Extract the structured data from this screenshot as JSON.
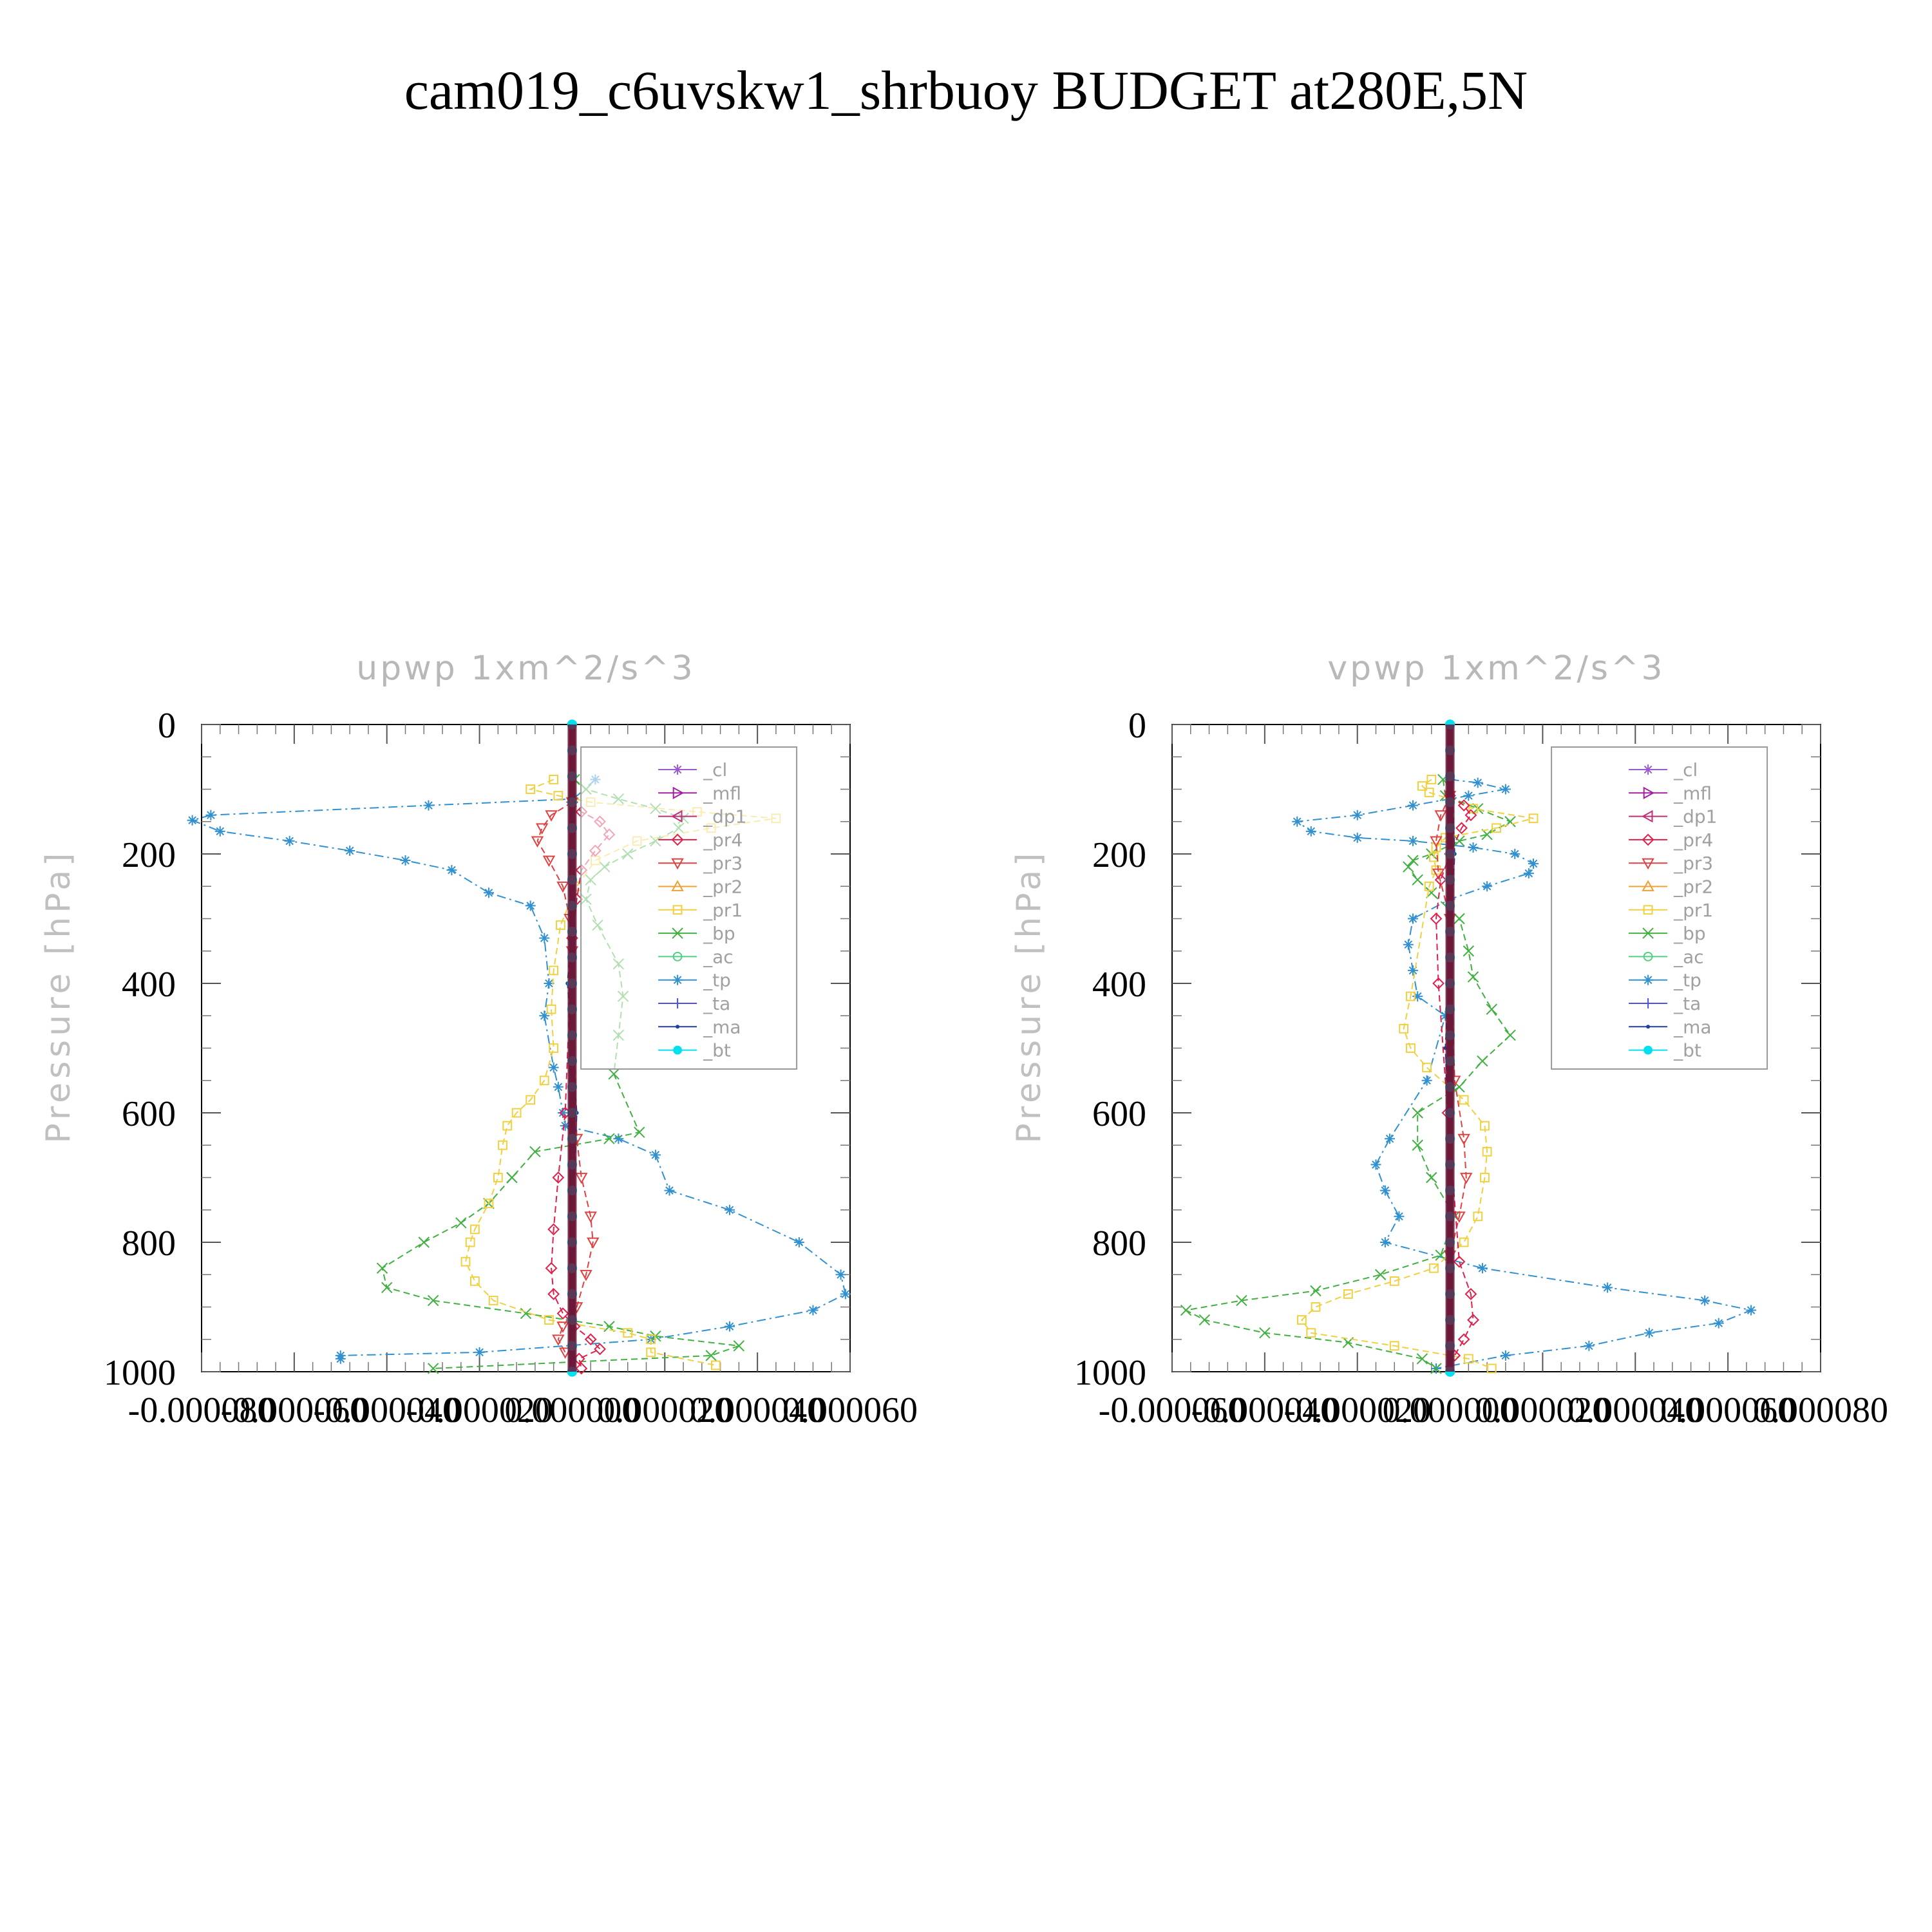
{
  "title": "cam019_c6uvskw1_shrbuoy  BUDGET at280E,5N",
  "legend_items": [
    {
      "label": "_cl",
      "color": "#9b59d0",
      "marker": "star"
    },
    {
      "label": "_mfl",
      "color": "#a020a0",
      "marker": "tri-right"
    },
    {
      "label": "_dp1",
      "color": "#c0307a",
      "marker": "tri-left"
    },
    {
      "label": "_pr4",
      "color": "#e0204a",
      "marker": "diamond"
    },
    {
      "label": "_pr3",
      "color": "#e04040",
      "marker": "tri-down"
    },
    {
      "label": "_pr2",
      "color": "#f0a030",
      "marker": "tri-up"
    },
    {
      "label": "_pr1",
      "color": "#f0d040",
      "marker": "square"
    },
    {
      "label": "_bp",
      "color": "#40b040",
      "marker": "x"
    },
    {
      "label": "_ac",
      "color": "#50d080",
      "marker": "circle"
    },
    {
      "label": "_tp",
      "color": "#3090d0",
      "marker": "asterisk"
    },
    {
      "label": "_ta",
      "color": "#5050e0",
      "marker": "plus"
    },
    {
      "label": "_ma",
      "color": "#2040a0",
      "marker": "dot"
    },
    {
      "label": "_bt",
      "color": "#00e0f0",
      "marker": "filled-circle"
    }
  ],
  "chart_data": [
    {
      "type": "line",
      "title": "upwp    1xm^2/s^3",
      "ylabel": "Pressure  [hPa]",
      "xlabel": "",
      "ylim": [
        1000,
        0
      ],
      "xlim": [
        -8e-05,
        6e-05
      ],
      "x_ticks": [
        -8e-05,
        -6e-05,
        -4e-05,
        -2e-05,
        0.0,
        2e-05,
        4e-05,
        6e-05
      ],
      "x_tick_labels": [
        "-0.000080",
        "-0.000060",
        "-0.000040",
        "-0.000020",
        "0.000000",
        "0.000020",
        "0.000040",
        "0.000060"
      ],
      "y_ticks": [
        0,
        200,
        400,
        600,
        800,
        1000
      ],
      "y_tick_labels": [
        "0",
        "200",
        "400",
        "600",
        "800",
        "1000"
      ],
      "legend_position": "top-right",
      "series": [
        {
          "name": "_tp",
          "x": [
            5e-06,
            3e-07,
            -3.1e-05,
            -7.8e-05,
            -8.2e-05,
            -7.6e-05,
            -6.1e-05,
            -4.8e-05,
            -3.6e-05,
            -2.6e-05,
            -1.8e-05,
            -9e-06,
            -6e-06,
            -5e-06,
            -6e-06,
            -4e-06,
            -3e-06,
            -2e-06,
            -1.5e-06,
            1e-05,
            1.8e-05,
            2.1e-05,
            3.4e-05,
            4.9e-05,
            5.8e-05,
            5.9e-05,
            5.2e-05,
            3.4e-05,
            1.7e-05,
            -2e-05,
            -5e-05,
            -5e-05
          ],
          "y": [
            85,
            115,
            125,
            140,
            148,
            165,
            180,
            195,
            210,
            225,
            260,
            280,
            330,
            400,
            450,
            530,
            560,
            600,
            620,
            640,
            665,
            720,
            750,
            800,
            850,
            880,
            905,
            930,
            950,
            970,
            975,
            980
          ]
        },
        {
          "name": "_bp",
          "x": [
            5e-07,
            3e-06,
            1e-05,
            1.8e-05,
            2.4e-05,
            2.3e-05,
            1.8e-05,
            1.2e-05,
            7e-06,
            4e-06,
            3e-06,
            5.5e-06,
            1e-05,
            1.1e-05,
            1e-05,
            9e-06,
            1.45e-05,
            8e-06,
            -8e-06,
            -1.3e-05,
            -1.8e-05,
            -2.4e-05,
            -3.2e-05,
            -4.1e-05,
            -4e-05,
            -3e-05,
            -1e-05,
            8e-06,
            1.8e-05,
            3.6e-05,
            3e-05,
            -3e-05
          ],
          "y": [
            85,
            100,
            115,
            130,
            145,
            160,
            180,
            200,
            220,
            240,
            270,
            310,
            370,
            420,
            480,
            540,
            630,
            640,
            660,
            700,
            740,
            770,
            800,
            840,
            870,
            890,
            910,
            930,
            945,
            960,
            975,
            995
          ]
        },
        {
          "name": "_pr1",
          "x": [
            -4e-06,
            -9e-06,
            -3e-06,
            4e-06,
            2.7e-05,
            4.4e-05,
            3e-05,
            1.4e-05,
            5e-06,
            1e-06,
            -2.5e-06,
            -4e-06,
            -4.5e-06,
            -4e-06,
            -6e-06,
            -9e-06,
            -1.2e-05,
            -1.4e-05,
            -1.5e-05,
            -1.6e-05,
            -1.8e-05,
            -2.1e-05,
            -2.2e-05,
            -2.3e-05,
            -2.1e-05,
            -1.7e-05,
            -5e-06,
            1.2e-05,
            1.7e-05,
            1.7e-05,
            3.1e-05
          ],
          "y": [
            85,
            100,
            110,
            120,
            135,
            145,
            160,
            180,
            210,
            250,
            310,
            380,
            440,
            500,
            550,
            580,
            600,
            620,
            650,
            700,
            740,
            780,
            800,
            830,
            860,
            890,
            920,
            940,
            950,
            970,
            990
          ]
        },
        {
          "name": "_pr4",
          "x": [
            0.0,
            2e-06,
            6e-06,
            8e-06,
            5e-06,
            2e-06,
            1e-06,
            0.0,
            -1.5e-06,
            -3e-06,
            -4e-06,
            -4.5e-06,
            -4e-06,
            -2e-06,
            5e-07,
            4e-06,
            6e-06,
            1.5e-06,
            2e-06
          ],
          "y": [
            120,
            135,
            150,
            170,
            195,
            225,
            270,
            330,
            600,
            700,
            780,
            840,
            880,
            910,
            930,
            950,
            965,
            980,
            995
          ]
        },
        {
          "name": "_pr3",
          "x": [
            0.0,
            -4.5e-06,
            -6.5e-06,
            -7.5e-06,
            -5e-06,
            -2e-06,
            -5e-07,
            0.0,
            1e-06,
            2e-06,
            4e-06,
            4.5e-06,
            3e-06,
            1e-06,
            -2e-06,
            -3e-06,
            -1.5e-06
          ],
          "y": [
            120,
            140,
            160,
            180,
            210,
            250,
            300,
            350,
            640,
            700,
            760,
            800,
            850,
            900,
            930,
            950,
            970
          ]
        },
        {
          "name": "_ma",
          "x": [
            0.0,
            0.0,
            -1e-06,
            1e-06,
            0.0,
            0.0,
            0.0
          ],
          "y": [
            0,
            300,
            400,
            600,
            800,
            900,
            1000
          ]
        },
        {
          "name": "_bt",
          "x": [
            0.0,
            0.0,
            0.0,
            0.0,
            0.0,
            0.0,
            0.0,
            0.0,
            0.0,
            0.0,
            0.0,
            0.0,
            0.0,
            0.0,
            0.0,
            0.0,
            0.0,
            0.0,
            0.0,
            0.0,
            0.0,
            0.0,
            0.0,
            0.0,
            0.0,
            0.0
          ],
          "y": [
            0,
            40,
            80,
            120,
            160,
            200,
            240,
            280,
            320,
            360,
            400,
            440,
            480,
            520,
            560,
            600,
            640,
            680,
            720,
            760,
            800,
            840,
            880,
            920,
            960,
            1000
          ]
        }
      ]
    },
    {
      "type": "line",
      "title": "vpwp    1xm^2/s^3",
      "ylabel": "Pressure  [hPa]",
      "xlabel": "",
      "ylim": [
        1000,
        0
      ],
      "xlim": [
        -6e-05,
        8e-05
      ],
      "x_ticks": [
        -6e-05,
        -4e-05,
        -2e-05,
        0.0,
        2e-05,
        4e-05,
        6e-05,
        8e-05
      ],
      "x_tick_labels": [
        "-0.000060",
        "-0.000040",
        "-0.000020",
        "0.000000",
        "0.000020",
        "0.000040",
        "0.000060",
        "0.000080"
      ],
      "y_ticks": [
        0,
        200,
        400,
        600,
        800,
        1000
      ],
      "y_tick_labels": [
        "0",
        "200",
        "400",
        "600",
        "800",
        "1000"
      ],
      "legend_position": "top-right",
      "series": [
        {
          "name": "_tp",
          "x": [
            0.0,
            6e-06,
            1.2e-05,
            4e-06,
            -8e-06,
            -2e-05,
            -3.3e-05,
            -3e-05,
            -2e-05,
            -8e-06,
            5e-06,
            1.4e-05,
            1.8e-05,
            1.7e-05,
            8e-06,
            0.0,
            -8e-06,
            -9e-06,
            -8e-06,
            -7e-06,
            -1e-06,
            -5e-06,
            -1.3e-05,
            -1.6e-05,
            -1.4e-05,
            -1.1e-05,
            -1.4e-05,
            7e-06,
            3.4e-05,
            5.5e-05,
            6.5e-05,
            5.8e-05,
            4.3e-05,
            3e-05,
            1.2e-05,
            -3e-06
          ],
          "y": [
            85,
            90,
            100,
            110,
            125,
            140,
            150,
            165,
            175,
            180,
            190,
            200,
            215,
            230,
            250,
            270,
            300,
            340,
            380,
            420,
            450,
            550,
            640,
            680,
            720,
            760,
            800,
            840,
            870,
            890,
            905,
            925,
            940,
            960,
            975,
            995
          ]
        },
        {
          "name": "_bp",
          "x": [
            -1.5e-06,
            -1e-06,
            6e-06,
            1.3e-05,
            8e-06,
            2e-06,
            -4e-06,
            -8e-06,
            -9e-06,
            -7e-06,
            -4e-06,
            2e-06,
            4e-06,
            5e-06,
            9e-06,
            1.3e-05,
            7e-06,
            2e-06,
            -7e-06,
            -7e-06,
            -4e-06,
            1e-06,
            -2e-06,
            -1.5e-05,
            -2.9e-05,
            -4.5e-05,
            -5.7e-05,
            -5.3e-05,
            -4e-05,
            -2.2e-05,
            -6e-06,
            -3e-06
          ],
          "y": [
            85,
            110,
            130,
            150,
            170,
            180,
            200,
            210,
            220,
            240,
            260,
            300,
            350,
            390,
            440,
            480,
            520,
            560,
            600,
            650,
            700,
            760,
            820,
            850,
            875,
            890,
            905,
            920,
            940,
            955,
            980,
            995
          ]
        },
        {
          "name": "_pr1",
          "x": [
            -4e-06,
            -6e-06,
            -4.5e-06,
            0.0,
            5e-06,
            1.8e-05,
            1e-05,
            -1e-06,
            -3e-06,
            -3.5e-06,
            -3e-06,
            -4.5e-06,
            -8.5e-06,
            -1e-05,
            -8.5e-06,
            -5e-06,
            3e-06,
            7.5e-06,
            8e-06,
            7.5e-06,
            6e-06,
            3e-06,
            -3.5e-06,
            -1.2e-05,
            -2.2e-05,
            -2.9e-05,
            -3.2e-05,
            -3e-05,
            -1.2e-05,
            4e-06,
            9e-06
          ],
          "y": [
            85,
            95,
            105,
            115,
            130,
            145,
            160,
            175,
            190,
            205,
            225,
            250,
            420,
            470,
            500,
            530,
            580,
            620,
            660,
            700,
            760,
            800,
            840,
            860,
            880,
            900,
            920,
            940,
            960,
            980,
            995
          ]
        },
        {
          "name": "_pr4",
          "x": [
            0.0,
            3e-06,
            4.5e-06,
            2.5e-06,
            0.0,
            -2e-06,
            -3e-06,
            -2.5e-06,
            -5e-07,
            2e-06,
            4.5e-06,
            5e-06,
            3e-06,
            1e-06
          ],
          "y": [
            110,
            125,
            140,
            160,
            200,
            240,
            300,
            400,
            600,
            830,
            880,
            920,
            950,
            975
          ]
        },
        {
          "name": "_pr3",
          "x": [
            0.0,
            -2e-06,
            -3e-06,
            -2.5e-06,
            0.0,
            1e-06,
            3e-06,
            3.5e-06,
            2e-06,
            0.0
          ],
          "y": [
            110,
            140,
            180,
            230,
            300,
            550,
            640,
            700,
            760,
            820
          ]
        },
        {
          "name": "_ma",
          "x": [
            0.0,
            1e-06,
            -1e-06,
            0.0,
            0.0,
            0.0
          ],
          "y": [
            0,
            200,
            500,
            700,
            900,
            1000
          ]
        },
        {
          "name": "_bt",
          "x": [
            0.0,
            0.0,
            0.0,
            0.0,
            0.0,
            0.0,
            0.0,
            0.0,
            0.0,
            0.0,
            0.0,
            0.0,
            0.0,
            0.0,
            0.0,
            0.0,
            0.0,
            0.0,
            0.0,
            0.0,
            0.0,
            0.0,
            0.0,
            0.0,
            0.0,
            0.0
          ],
          "y": [
            0,
            40,
            80,
            120,
            160,
            200,
            240,
            280,
            320,
            360,
            400,
            440,
            480,
            520,
            560,
            600,
            640,
            680,
            720,
            760,
            800,
            840,
            880,
            920,
            960,
            1000
          ]
        }
      ]
    }
  ]
}
